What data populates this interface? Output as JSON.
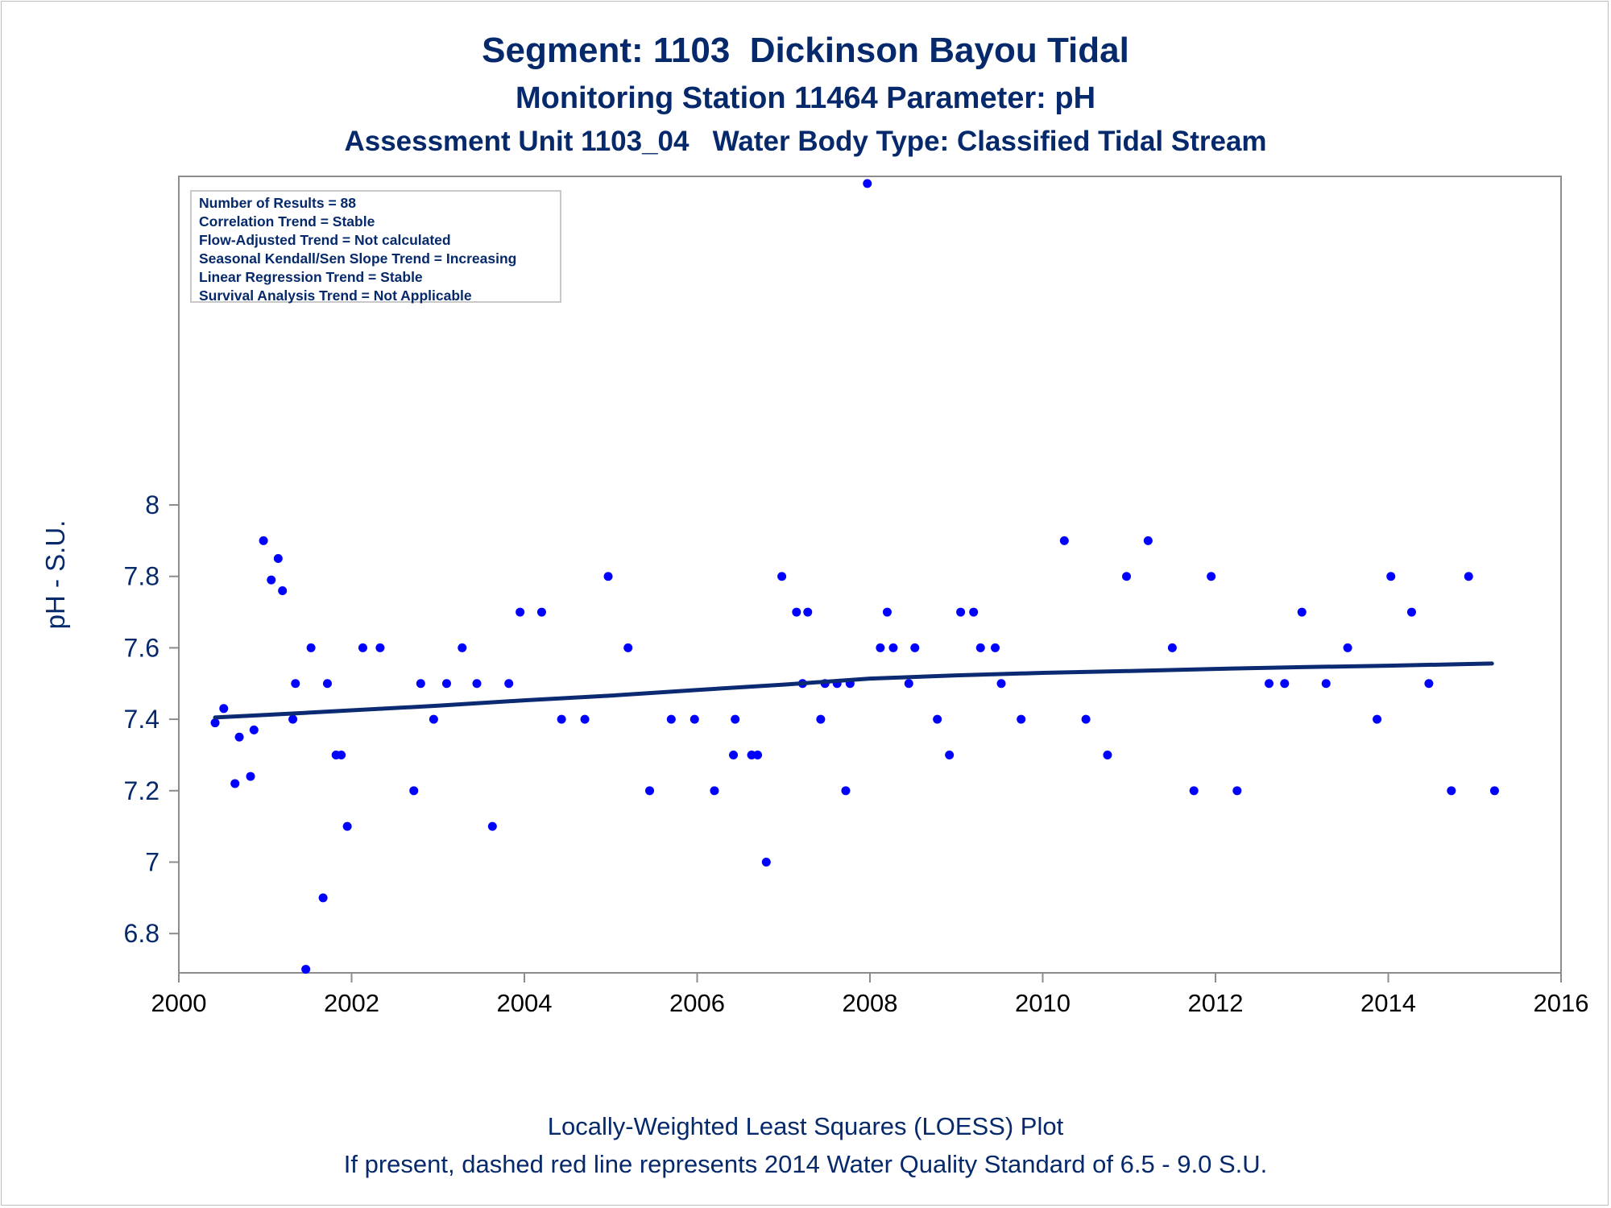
{
  "titles": {
    "line1": "Segment: 1103  Dickinson Bayou Tidal",
    "line2": "Monitoring Station 11464 Parameter: pH",
    "line3": "Assessment Unit 1103_04   Water Body Type: Classified Tidal Stream"
  },
  "stats_box": [
    "Number of Results = 88",
    "Correlation Trend = Stable",
    "Flow-Adjusted Trend = Not calculated",
    "Seasonal Kendall/Sen Slope Trend = Increasing",
    "Linear Regression Trend = Stable",
    "Survival Analysis Trend = Not Applicable"
  ],
  "footnotes": {
    "line1": "Locally-Weighted Least Squares (LOESS) Plot",
    "line2": "If present, dashed red line represents 2014 Water Quality Standard of 6.5 - 9.0 S.U."
  },
  "colors": {
    "text": "#06296b",
    "points": "#0000ff",
    "trend_line": "#0b2a72",
    "axis": "#8c8c8c"
  },
  "chart_data": {
    "type": "scatter",
    "xlabel": "",
    "ylabel": "pH - S.U.",
    "xlim": [
      2000,
      2016
    ],
    "ylim": [
      6.69,
      8.92
    ],
    "x_ticks": [
      2000,
      2002,
      2004,
      2006,
      2008,
      2010,
      2012,
      2014,
      2016
    ],
    "y_ticks": [
      6.8,
      7.0,
      7.2,
      7.4,
      7.6,
      7.8,
      8.0
    ],
    "y_tick_labels": [
      "6.8",
      "7",
      "7.2",
      "7.4",
      "7.6",
      "7.8",
      "8"
    ],
    "grid": false,
    "points": [
      [
        2000.42,
        7.39
      ],
      [
        2000.52,
        7.43
      ],
      [
        2000.65,
        7.22
      ],
      [
        2000.7,
        7.35
      ],
      [
        2000.83,
        7.24
      ],
      [
        2000.87,
        7.37
      ],
      [
        2000.98,
        7.9
      ],
      [
        2001.07,
        7.79
      ],
      [
        2001.15,
        7.85
      ],
      [
        2001.2,
        7.76
      ],
      [
        2001.32,
        7.4
      ],
      [
        2001.35,
        7.5
      ],
      [
        2001.47,
        6.7
      ],
      [
        2001.53,
        7.6
      ],
      [
        2001.67,
        6.9
      ],
      [
        2001.72,
        7.5
      ],
      [
        2001.82,
        7.3
      ],
      [
        2001.88,
        7.3
      ],
      [
        2001.95,
        7.1
      ],
      [
        2002.13,
        7.6
      ],
      [
        2002.33,
        7.6
      ],
      [
        2002.72,
        7.2
      ],
      [
        2002.8,
        7.5
      ],
      [
        2002.95,
        7.4
      ],
      [
        2003.1,
        7.5
      ],
      [
        2003.28,
        7.6
      ],
      [
        2003.45,
        7.5
      ],
      [
        2003.63,
        7.1
      ],
      [
        2003.82,
        7.5
      ],
      [
        2003.95,
        7.7
      ],
      [
        2004.2,
        7.7
      ],
      [
        2004.43,
        7.4
      ],
      [
        2004.7,
        7.4
      ],
      [
        2004.97,
        7.8
      ],
      [
        2005.2,
        7.6
      ],
      [
        2005.45,
        7.2
      ],
      [
        2005.7,
        7.4
      ],
      [
        2005.97,
        7.4
      ],
      [
        2006.2,
        7.2
      ],
      [
        2006.42,
        7.3
      ],
      [
        2006.44,
        7.4
      ],
      [
        2006.63,
        7.3
      ],
      [
        2006.7,
        7.3
      ],
      [
        2006.8,
        7.0
      ],
      [
        2006.98,
        7.8
      ],
      [
        2007.15,
        7.7
      ],
      [
        2007.22,
        7.5
      ],
      [
        2007.28,
        7.7
      ],
      [
        2007.43,
        7.4
      ],
      [
        2007.48,
        7.5
      ],
      [
        2007.62,
        7.5
      ],
      [
        2007.72,
        7.2
      ],
      [
        2007.77,
        7.5
      ],
      [
        2007.97,
        8.9
      ],
      [
        2008.12,
        7.6
      ],
      [
        2008.2,
        7.7
      ],
      [
        2008.27,
        7.6
      ],
      [
        2008.45,
        7.5
      ],
      [
        2008.52,
        7.6
      ],
      [
        2008.78,
        7.4
      ],
      [
        2008.92,
        7.3
      ],
      [
        2009.05,
        7.7
      ],
      [
        2009.2,
        7.7
      ],
      [
        2009.28,
        7.6
      ],
      [
        2009.45,
        7.6
      ],
      [
        2009.52,
        7.5
      ],
      [
        2009.75,
        7.4
      ],
      [
        2010.25,
        7.9
      ],
      [
        2010.5,
        7.4
      ],
      [
        2010.75,
        7.3
      ],
      [
        2010.97,
        7.8
      ],
      [
        2011.22,
        7.9
      ],
      [
        2011.5,
        7.6
      ],
      [
        2011.75,
        7.2
      ],
      [
        2011.95,
        7.8
      ],
      [
        2012.25,
        7.2
      ],
      [
        2012.62,
        7.5
      ],
      [
        2012.8,
        7.5
      ],
      [
        2013.0,
        7.7
      ],
      [
        2013.28,
        7.5
      ],
      [
        2013.53,
        7.6
      ],
      [
        2013.87,
        7.4
      ],
      [
        2014.03,
        7.8
      ],
      [
        2014.27,
        7.7
      ],
      [
        2014.47,
        7.5
      ],
      [
        2014.73,
        7.2
      ],
      [
        2014.93,
        7.8
      ],
      [
        2015.23,
        7.2
      ]
    ],
    "loess": [
      [
        2000.42,
        7.405
      ],
      [
        2001.0,
        7.412
      ],
      [
        2002.0,
        7.425
      ],
      [
        2003.0,
        7.438
      ],
      [
        2004.0,
        7.453
      ],
      [
        2005.0,
        7.466
      ],
      [
        2006.0,
        7.482
      ],
      [
        2007.0,
        7.497
      ],
      [
        2008.0,
        7.514
      ],
      [
        2009.0,
        7.523
      ],
      [
        2010.0,
        7.53
      ],
      [
        2011.0,
        7.535
      ],
      [
        2012.0,
        7.541
      ],
      [
        2013.0,
        7.546
      ],
      [
        2014.0,
        7.55
      ],
      [
        2015.2,
        7.556
      ]
    ]
  }
}
